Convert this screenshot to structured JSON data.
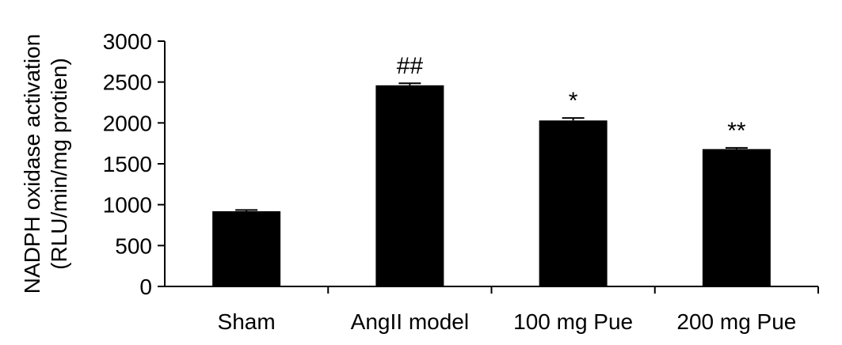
{
  "chart_data": {
    "type": "bar",
    "categories": [
      "Sham",
      "AngII model",
      "100 mg Pue",
      "200 mg Pue"
    ],
    "values": [
      920,
      2460,
      2030,
      1680
    ],
    "errors": [
      15,
      25,
      30,
      15
    ],
    "annotations": [
      "",
      "##",
      "*",
      "**"
    ],
    "ylabel_lines": [
      "NADPH oxidase activation",
      "(RLU/min/mg protien)"
    ],
    "xlabel": "",
    "ylim": [
      0,
      3000
    ],
    "yticks": [
      0,
      500,
      1000,
      1500,
      2000,
      2500,
      3000
    ],
    "grid": false,
    "bar_color": "#000000"
  }
}
